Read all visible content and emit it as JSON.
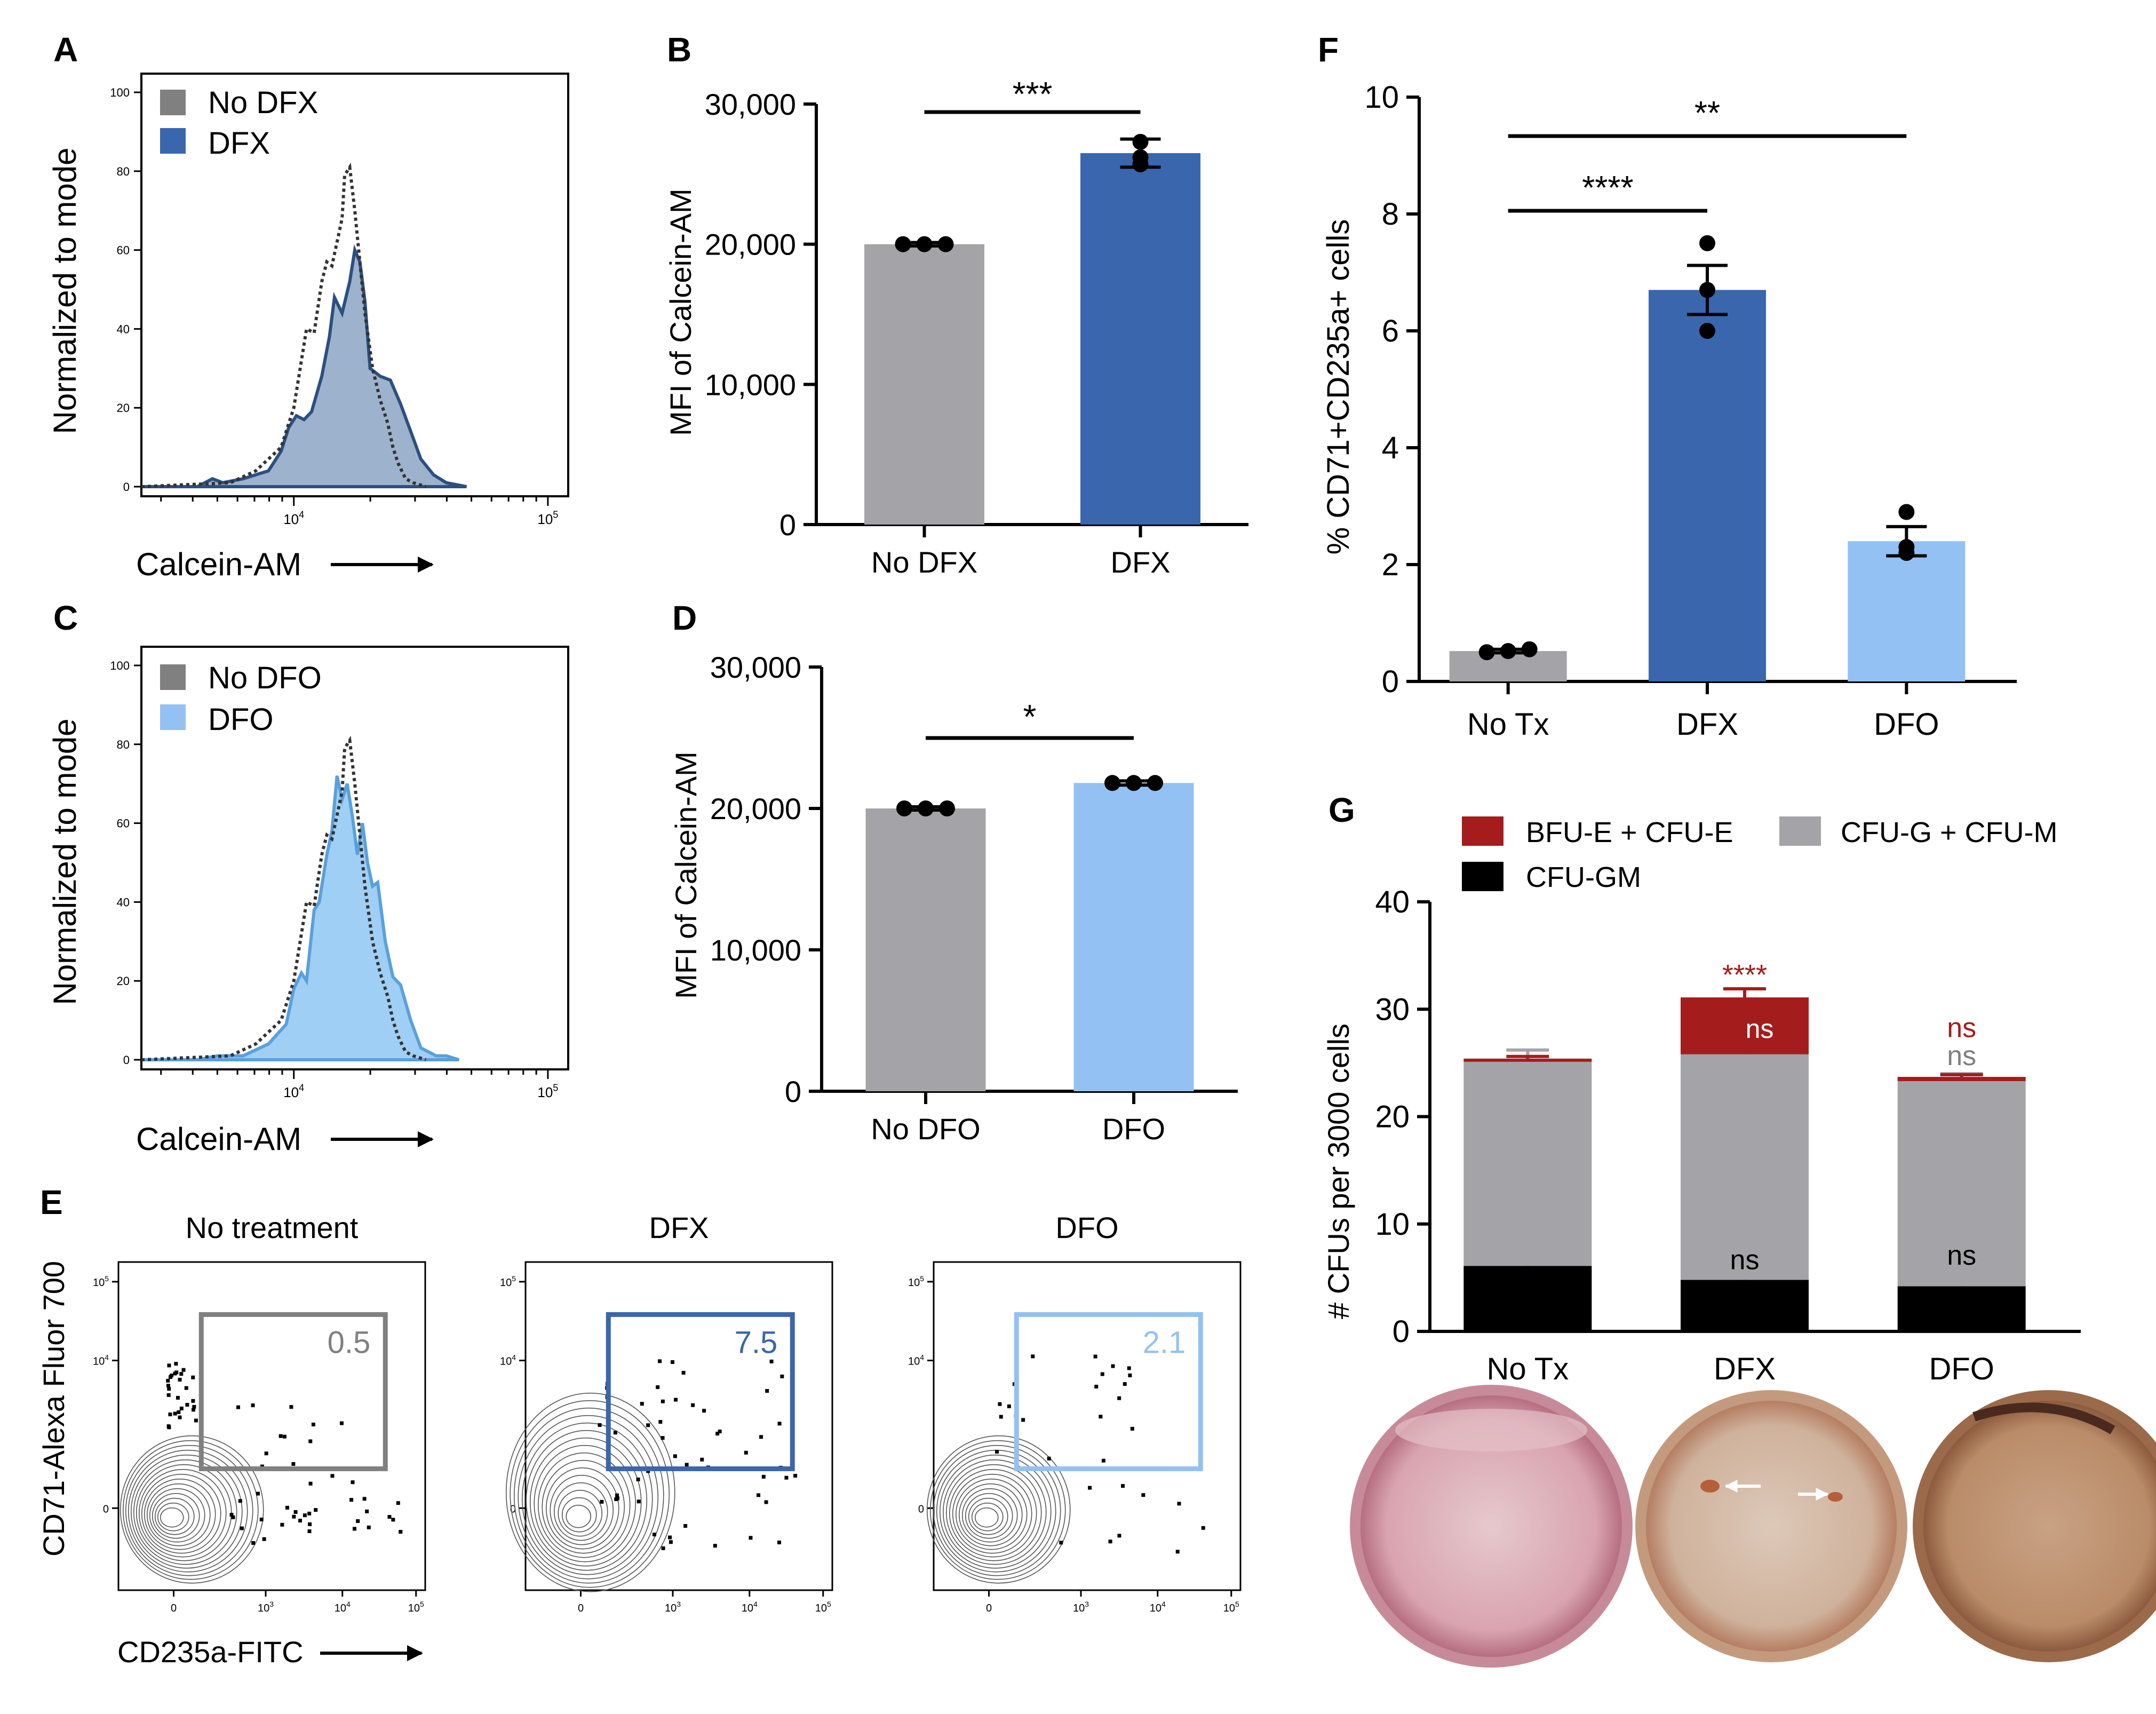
{
  "panels": {
    "A": "A",
    "B": "B",
    "C": "C",
    "D": "D",
    "E": "E",
    "F": "F",
    "G": "G"
  },
  "colors": {
    "dark_blue": "#3a66ad",
    "light_blue": "#93c1f3",
    "grey": "#a4a4a8",
    "dark_red": "#a51c1c",
    "black": "#000000"
  },
  "chart_data": [
    {
      "id": "A",
      "type": "area",
      "title": "",
      "xlabel": "Calcein-AM",
      "ylabel": "Normalized to mode",
      "yticks": [
        "100",
        "80",
        "60",
        "40",
        "20",
        "0"
      ],
      "xticks": [
        "10^4",
        "10^5"
      ],
      "legend": [
        {
          "label": "No DFX",
          "color": "#808080"
        },
        {
          "label": "DFX",
          "color": "#3a66ad"
        }
      ],
      "log_x_range": [
        3.4,
        5.08
      ],
      "ylim": [
        0,
        100
      ],
      "series": [
        {
          "name": "No DFX",
          "style": "dotted",
          "x": [
            3.4,
            3.75,
            3.85,
            3.95,
            4.0,
            4.03,
            4.05,
            4.08,
            4.11,
            4.13,
            4.15,
            4.17,
            4.19,
            4.2,
            4.22,
            4.24,
            4.26,
            4.28,
            4.31,
            4.34,
            4.37,
            4.39,
            4.41,
            4.44,
            4.47,
            4.52
          ],
          "y": [
            0,
            1,
            4,
            10,
            20,
            32,
            40,
            39,
            52,
            57,
            56,
            62,
            68,
            79,
            81,
            70,
            57,
            44,
            30,
            22,
            16,
            10,
            6,
            2,
            1,
            0
          ]
        },
        {
          "name": "DFX",
          "style": "filled",
          "x": [
            3.4,
            3.62,
            3.68,
            3.72,
            3.8,
            3.9,
            3.95,
            3.98,
            4.01,
            4.04,
            4.07,
            4.11,
            4.14,
            4.16,
            4.19,
            4.22,
            4.24,
            4.26,
            4.28,
            4.3,
            4.34,
            4.38,
            4.42,
            4.46,
            4.5,
            4.55,
            4.6,
            4.68
          ],
          "y": [
            0,
            0,
            2,
            1,
            2,
            4,
            9,
            15,
            18,
            17,
            19,
            28,
            38,
            48,
            44,
            52,
            60,
            57,
            47,
            30,
            28,
            27,
            21,
            14,
            7,
            3,
            1,
            0
          ]
        }
      ]
    },
    {
      "id": "B",
      "type": "bar",
      "title": "",
      "xlabel": "",
      "ylabel": "MFI of Calcein-AM",
      "ylim": [
        0,
        30000
      ],
      "yticks": [
        "0",
        "10,000",
        "20,000",
        "30,000"
      ],
      "categories": [
        "No DFX",
        "DFX"
      ],
      "values": [
        20000,
        26500
      ],
      "errors": [
        120,
        1000
      ],
      "points": [
        [
          20000,
          20000,
          20000
        ],
        [
          26200,
          27300,
          25700
        ]
      ],
      "significance": "***"
    },
    {
      "id": "C",
      "type": "area",
      "title": "",
      "xlabel": "Calcein-AM",
      "ylabel": "Normalized to mode",
      "yticks": [
        "100",
        "80",
        "60",
        "40",
        "20",
        "0"
      ],
      "xticks": [
        "10^4",
        "10^5"
      ],
      "legend": [
        {
          "label": "No DFO",
          "color": "#808080"
        },
        {
          "label": "DFO",
          "color": "#93c1f3"
        }
      ],
      "log_x_range": [
        3.4,
        5.08
      ],
      "ylim": [
        0,
        100
      ],
      "series": [
        {
          "name": "No DFO",
          "style": "dotted",
          "x": [
            3.4,
            3.75,
            3.85,
            3.95,
            4.0,
            4.03,
            4.05,
            4.08,
            4.11,
            4.13,
            4.15,
            4.17,
            4.19,
            4.2,
            4.22,
            4.24,
            4.26,
            4.28,
            4.31,
            4.34,
            4.37,
            4.39,
            4.41,
            4.44,
            4.47,
            4.52
          ],
          "y": [
            0,
            1,
            4,
            10,
            20,
            32,
            40,
            39,
            52,
            57,
            56,
            62,
            68,
            79,
            81,
            70,
            57,
            44,
            30,
            22,
            16,
            10,
            6,
            2,
            1,
            0
          ]
        },
        {
          "name": "DFO",
          "style": "filled",
          "x": [
            3.4,
            3.62,
            3.7,
            3.8,
            3.9,
            3.97,
            4.0,
            4.03,
            4.05,
            4.08,
            4.1,
            4.13,
            4.15,
            4.17,
            4.19,
            4.21,
            4.23,
            4.25,
            4.27,
            4.29,
            4.31,
            4.33,
            4.36,
            4.39,
            4.42,
            4.46,
            4.5,
            4.56,
            4.6,
            4.65
          ],
          "y": [
            0,
            0,
            1,
            1,
            4,
            9,
            18,
            22,
            20,
            38,
            40,
            52,
            58,
            72,
            66,
            70,
            62,
            52,
            60,
            50,
            44,
            45,
            30,
            21,
            19,
            10,
            3,
            1,
            1,
            0
          ]
        }
      ]
    },
    {
      "id": "D",
      "type": "bar",
      "title": "",
      "xlabel": "",
      "ylabel": "MFI of Calcein-AM",
      "ylim": [
        0,
        30000
      ],
      "yticks": [
        "0",
        "10,000",
        "20,000",
        "30,000"
      ],
      "categories": [
        "No DFO",
        "DFO"
      ],
      "values": [
        20000,
        21800
      ],
      "errors": [
        120,
        150
      ],
      "points": [
        [
          20000,
          20000,
          20000
        ],
        [
          21800,
          21800,
          21800
        ]
      ],
      "significance": "*"
    },
    {
      "id": "E",
      "type": "scatter",
      "xlabel": "CD235a-FITC",
      "ylabel": "CD71-Alexa Fluor 700",
      "xticks": [
        "0",
        "10^3",
        "10^4",
        "10^5"
      ],
      "yticks": [
        "10^5",
        "10^4",
        "0"
      ],
      "plots": [
        {
          "title": "No treatment",
          "gate_value": "0.5",
          "gate_color": "#808080"
        },
        {
          "title": "DFX",
          "gate_value": "7.5",
          "gate_color": "#3a66ad"
        },
        {
          "title": "DFO",
          "gate_value": "2.1",
          "gate_color": "#93c1f3"
        }
      ]
    },
    {
      "id": "F",
      "type": "bar",
      "title": "",
      "xlabel": "",
      "ylabel": "% CD71+CD235a+ cells",
      "ylim": [
        0,
        10
      ],
      "yticks": [
        "0",
        "2",
        "4",
        "6",
        "8",
        "10"
      ],
      "categories": [
        "No Tx",
        "DFX",
        "DFO"
      ],
      "values": [
        0.52,
        6.7,
        2.4
      ],
      "errors": [
        0.03,
        0.42,
        0.25
      ],
      "points": [
        [
          0.5,
          0.52,
          0.55
        ],
        [
          7.5,
          6.0,
          6.7
        ],
        [
          2.9,
          2.3,
          2.2
        ]
      ],
      "significance": [
        {
          "label": "****",
          "from": 0,
          "to": 1
        },
        {
          "label": "**",
          "from": 0,
          "to": 2
        }
      ]
    },
    {
      "id": "G",
      "type": "bar",
      "title": "",
      "xlabel": "",
      "ylabel": "# CFUs per 3000 cells",
      "ylim": [
        0,
        40
      ],
      "yticks": [
        "0",
        "10",
        "20",
        "30",
        "40"
      ],
      "categories": [
        "No Tx",
        "DFX",
        "DFO"
      ],
      "legend": [
        {
          "label": "BFU-E + CFU-E",
          "color": "#a51c1c"
        },
        {
          "label": "CFU-G + CFU-M",
          "color": "#a4a4a8"
        },
        {
          "label": "CFU-GM",
          "color": "#000000"
        }
      ],
      "series": [
        {
          "name": "CFU-GM",
          "values": [
            6.1,
            4.8,
            4.2
          ],
          "errors": [
            0.6,
            0.3,
            1.2
          ]
        },
        {
          "name": "CFU-G + CFU-M",
          "values": [
            19.0,
            21.0,
            19.1
          ],
          "errors": [
            1.1,
            0.3,
            0.7
          ]
        },
        {
          "name": "BFU-E + CFU-E",
          "values": [
            0.3,
            5.3,
            0.4
          ],
          "errors": [
            0.2,
            0.8,
            0.2
          ]
        }
      ],
      "annotations": [
        {
          "label": "****",
          "category": 1,
          "color": "#a51c1c"
        },
        {
          "label": "ns",
          "category": 1,
          "color": "#ffffff"
        },
        {
          "label": "ns",
          "category": 1,
          "color": "#000000"
        },
        {
          "label": "ns",
          "category": 2,
          "color": "#a51c1c"
        },
        {
          "label": "ns",
          "category": 2,
          "color": "#808080"
        },
        {
          "label": "ns",
          "category": 2,
          "color": "#000000"
        }
      ],
      "photos": [
        "No Tx dish",
        "DFX dish",
        "DFO dish"
      ]
    }
  ]
}
